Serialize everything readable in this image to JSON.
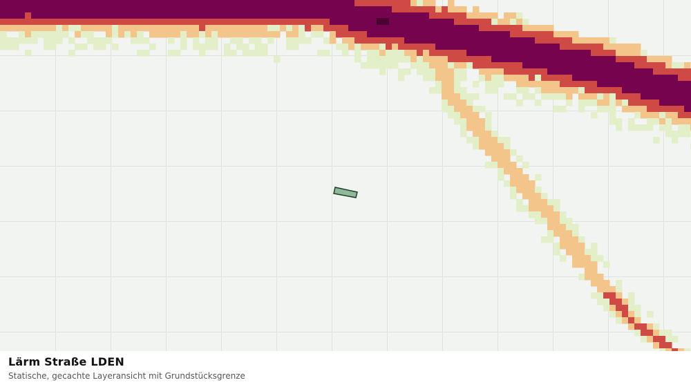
{
  "map": {
    "layer_title": "Lärm Straße LDEN",
    "layer_description": "Statische, gecachte Layeransicht mit Grundstücksgrenze",
    "colors": {
      "background": "#f2f4f1",
      "grid": "#dfe2de",
      "level_1": "#e3efc9",
      "level_2": "#f3c58a",
      "level_3": "#cf4a45",
      "level_4": "#76034e",
      "level_5": "#4a0032",
      "parcel_fill": "#8fb99a",
      "parcel_stroke": "#1f3d27"
    },
    "noise_levels": [
      "level_1",
      "level_2",
      "level_3",
      "level_4",
      "level_5"
    ],
    "parcel": "Grundstücksgrenze"
  }
}
